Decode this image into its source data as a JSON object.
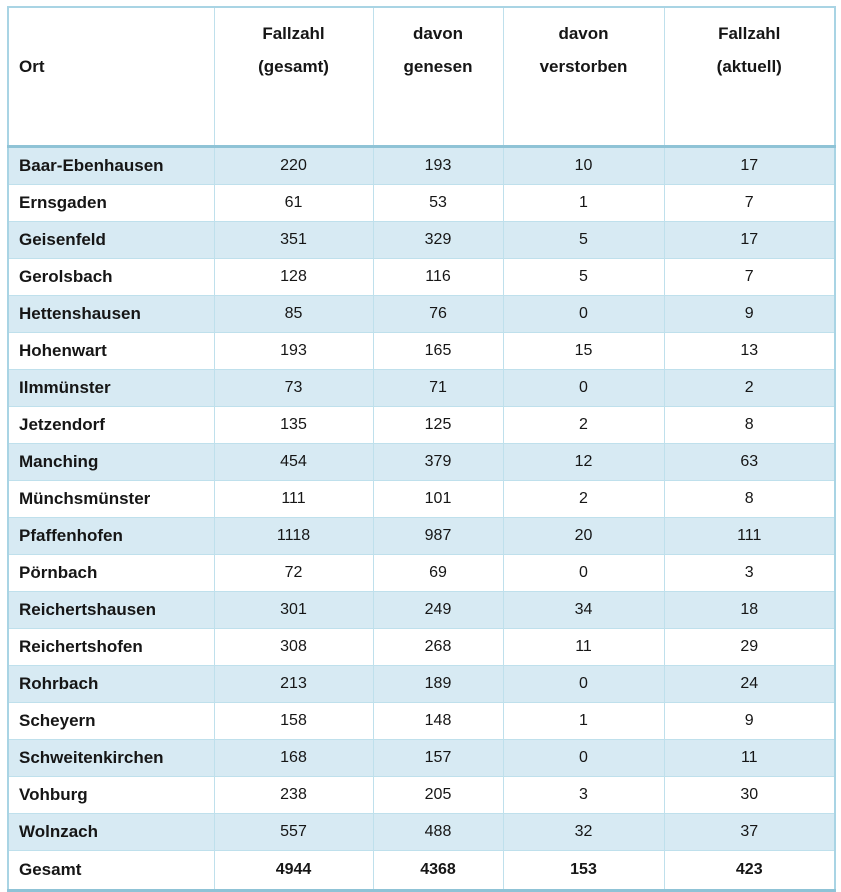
{
  "table": {
    "columns": [
      {
        "id": "ort",
        "line1": "Ort",
        "line2": ""
      },
      {
        "id": "fallzahl_gesamt",
        "line1": "Fallzahl",
        "line2": "(gesamt)"
      },
      {
        "id": "davon_genesen",
        "line1": "davon",
        "line2": "genesen"
      },
      {
        "id": "davon_verstorben",
        "line1": "davon",
        "line2": "verstorben"
      },
      {
        "id": "fallzahl_aktuell",
        "line1": "Fallzahl",
        "line2": "(aktuell)"
      }
    ],
    "rows": [
      {
        "ort": "Baar-Ebenhausen",
        "fallzahl_gesamt": "220",
        "davon_genesen": "193",
        "davon_verstorben": "10",
        "fallzahl_aktuell": "17"
      },
      {
        "ort": "Ernsgaden",
        "fallzahl_gesamt": "61",
        "davon_genesen": "53",
        "davon_verstorben": "1",
        "fallzahl_aktuell": "7"
      },
      {
        "ort": "Geisenfeld",
        "fallzahl_gesamt": "351",
        "davon_genesen": "329",
        "davon_verstorben": "5",
        "fallzahl_aktuell": "17"
      },
      {
        "ort": "Gerolsbach",
        "fallzahl_gesamt": "128",
        "davon_genesen": "116",
        "davon_verstorben": "5",
        "fallzahl_aktuell": "7"
      },
      {
        "ort": "Hettenshausen",
        "fallzahl_gesamt": "85",
        "davon_genesen": "76",
        "davon_verstorben": "0",
        "fallzahl_aktuell": "9"
      },
      {
        "ort": "Hohenwart",
        "fallzahl_gesamt": "193",
        "davon_genesen": "165",
        "davon_verstorben": "15",
        "fallzahl_aktuell": "13"
      },
      {
        "ort": "Ilmmünster",
        "fallzahl_gesamt": "73",
        "davon_genesen": "71",
        "davon_verstorben": "0",
        "fallzahl_aktuell": "2"
      },
      {
        "ort": "Jetzendorf",
        "fallzahl_gesamt": "135",
        "davon_genesen": "125",
        "davon_verstorben": "2",
        "fallzahl_aktuell": "8"
      },
      {
        "ort": "Manching",
        "fallzahl_gesamt": "454",
        "davon_genesen": "379",
        "davon_verstorben": "12",
        "fallzahl_aktuell": "63"
      },
      {
        "ort": "Münchsmünster",
        "fallzahl_gesamt": "111",
        "davon_genesen": "101",
        "davon_verstorben": "2",
        "fallzahl_aktuell": "8"
      },
      {
        "ort": "Pfaffenhofen",
        "fallzahl_gesamt": "1118",
        "davon_genesen": "987",
        "davon_verstorben": "20",
        "fallzahl_aktuell": "111"
      },
      {
        "ort": "Pörnbach",
        "fallzahl_gesamt": "72",
        "davon_genesen": "69",
        "davon_verstorben": "0",
        "fallzahl_aktuell": "3"
      },
      {
        "ort": "Reichertshausen",
        "fallzahl_gesamt": "301",
        "davon_genesen": "249",
        "davon_verstorben": "34",
        "fallzahl_aktuell": "18"
      },
      {
        "ort": "Reichertshofen",
        "fallzahl_gesamt": "308",
        "davon_genesen": "268",
        "davon_verstorben": "11",
        "fallzahl_aktuell": "29"
      },
      {
        "ort": "Rohrbach",
        "fallzahl_gesamt": "213",
        "davon_genesen": "189",
        "davon_verstorben": "0",
        "fallzahl_aktuell": "24"
      },
      {
        "ort": "Scheyern",
        "fallzahl_gesamt": "158",
        "davon_genesen": "148",
        "davon_verstorben": "1",
        "fallzahl_aktuell": "9"
      },
      {
        "ort": "Schweitenkirchen",
        "fallzahl_gesamt": "168",
        "davon_genesen": "157",
        "davon_verstorben": "0",
        "fallzahl_aktuell": "11"
      },
      {
        "ort": "Vohburg",
        "fallzahl_gesamt": "238",
        "davon_genesen": "205",
        "davon_verstorben": "3",
        "fallzahl_aktuell": "30"
      },
      {
        "ort": "Wolnzach",
        "fallzahl_gesamt": "557",
        "davon_genesen": "488",
        "davon_verstorben": "32",
        "fallzahl_aktuell": "37"
      }
    ],
    "total_row": {
      "ort": "Gesamt",
      "fallzahl_gesamt": "4944",
      "davon_genesen": "4368",
      "davon_verstorben": "153",
      "fallzahl_aktuell": "423"
    }
  },
  "colors": {
    "row_alt_bg": "#d7eaf3",
    "grid_line": "#bfe0ec",
    "strong_line": "#8fc3d6",
    "outer_border": "#a9d4e4",
    "text": "#161616"
  }
}
